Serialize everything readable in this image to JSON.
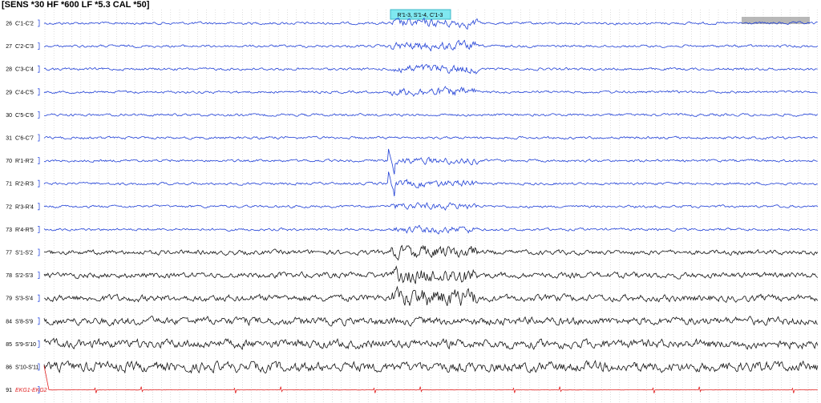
{
  "header": {
    "text": "[SENS *30  HF *600  LF *5.3  CAL *50]"
  },
  "annotation": {
    "text": "R'1-3, S'1-4, C'1-3"
  },
  "channels": [
    {
      "number": "26",
      "label": "C'1-C'2",
      "color": "#1f3fd6"
    },
    {
      "number": "27",
      "label": "C'2-C'3",
      "color": "#1f3fd6"
    },
    {
      "number": "28",
      "label": "C'3-C'4",
      "color": "#1f3fd6"
    },
    {
      "number": "29",
      "label": "C'4-C'5",
      "color": "#1f3fd6"
    },
    {
      "number": "30",
      "label": "C'5-C'6",
      "color": "#1f3fd6"
    },
    {
      "number": "31",
      "label": "C'6-C'7",
      "color": "#1f3fd6"
    },
    {
      "number": "70",
      "label": "R'1-R'2",
      "color": "#1f3fd6"
    },
    {
      "number": "71",
      "label": "R'2-R'3",
      "color": "#1f3fd6"
    },
    {
      "number": "72",
      "label": "R'3-R'4",
      "color": "#1f3fd6"
    },
    {
      "number": "73",
      "label": "R'4-R'5",
      "color": "#1f3fd6"
    },
    {
      "number": "77",
      "label": "S'1-S'2",
      "color": "#111111"
    },
    {
      "number": "78",
      "label": "S'2-S'3",
      "color": "#111111"
    },
    {
      "number": "79",
      "label": "S'3-S'4",
      "color": "#111111"
    },
    {
      "number": "84",
      "label": "S'8-S'9",
      "color": "#111111"
    },
    {
      "number": "85",
      "label": "S'9-S'10",
      "color": "#111111"
    },
    {
      "number": "86",
      "label": "S'10-S'11",
      "color": "#111111"
    },
    {
      "number": "91",
      "label": "EKG1-EKG2",
      "color": "#e02020"
    }
  ]
}
